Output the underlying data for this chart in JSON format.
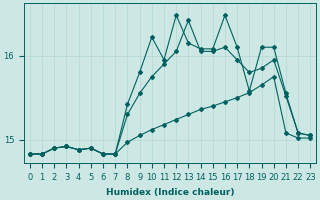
{
  "xlabel": "Humidex (Indice chaleur)",
  "ylabel": "",
  "bg_color": "#cde8e4",
  "line_color": "#006060",
  "grid_color": "#b0d8d4",
  "xlim_min": -0.5,
  "xlim_max": 23.5,
  "ylim_min": 14.72,
  "ylim_max": 16.62,
  "yticks": [
    15,
    16
  ],
  "xticks": [
    0,
    1,
    2,
    3,
    4,
    5,
    6,
    7,
    8,
    9,
    10,
    11,
    12,
    13,
    14,
    15,
    16,
    17,
    18,
    19,
    20,
    21,
    22,
    23
  ],
  "series1_x": [
    0,
    1,
    2,
    3,
    4,
    5,
    6,
    7,
    8,
    9,
    10,
    11,
    12,
    13,
    14,
    15,
    16,
    17,
    18,
    19,
    20,
    21,
    22,
    23
  ],
  "series1_y": [
    14.83,
    14.83,
    14.9,
    14.92,
    14.88,
    14.9,
    14.83,
    14.83,
    14.97,
    15.05,
    15.12,
    15.18,
    15.24,
    15.3,
    15.36,
    15.4,
    15.45,
    15.5,
    15.56,
    15.65,
    15.75,
    15.08,
    15.02,
    15.02
  ],
  "series2_x": [
    0,
    1,
    2,
    3,
    4,
    5,
    6,
    7,
    8,
    9,
    10,
    11,
    12,
    13,
    14,
    15,
    16,
    17,
    18,
    19,
    20,
    21,
    22,
    23
  ],
  "series2_y": [
    14.83,
    14.83,
    14.9,
    14.92,
    14.88,
    14.9,
    14.83,
    14.83,
    15.3,
    15.55,
    15.75,
    15.9,
    16.05,
    16.42,
    16.05,
    16.05,
    16.1,
    15.95,
    15.8,
    15.85,
    15.95,
    15.52,
    15.08,
    15.05
  ],
  "series3_x": [
    0,
    1,
    2,
    3,
    4,
    5,
    6,
    7,
    8,
    9,
    10,
    11,
    12,
    13,
    14,
    15,
    16,
    17,
    18,
    19,
    20,
    21,
    22,
    23
  ],
  "series3_y": [
    14.83,
    14.83,
    14.9,
    14.92,
    14.88,
    14.9,
    14.83,
    14.83,
    15.42,
    15.8,
    16.22,
    15.95,
    16.48,
    16.15,
    16.08,
    16.08,
    16.48,
    16.1,
    15.58,
    16.1,
    16.1,
    15.55,
    15.08,
    15.05
  ],
  "marker": "D",
  "marker_size": 2,
  "line_width": 0.8,
  "tick_labelsize": 6,
  "xlabel_fontsize": 6.5
}
